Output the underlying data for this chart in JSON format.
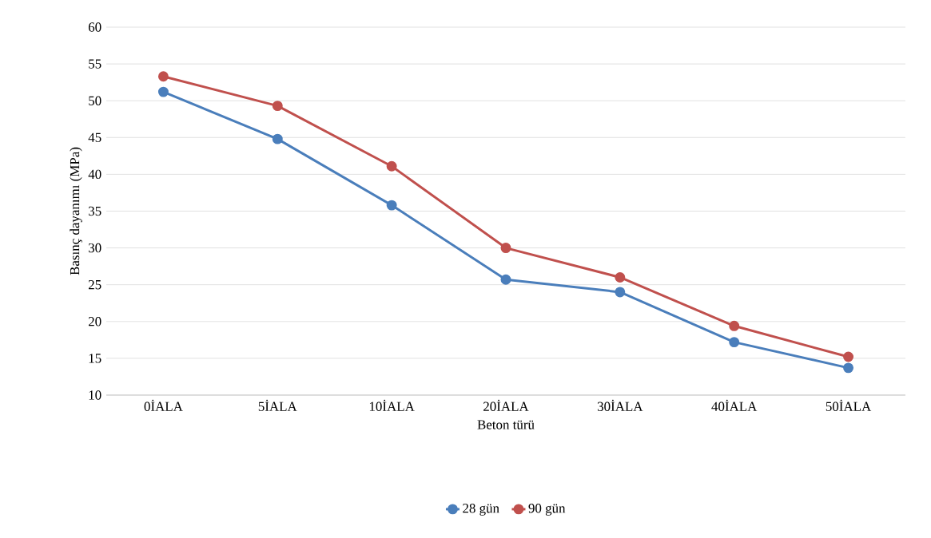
{
  "chart_data": {
    "type": "line",
    "xlabel": "Beton türü",
    "ylabel": "Basınç dayanımı (MPa)",
    "categories": [
      "0İALA",
      "5İALA",
      "10İALA",
      "20İALA",
      "30İALA",
      "40İALA",
      "50İALA"
    ],
    "series": [
      {
        "name": "28 gün",
        "color": "#4a7ebb",
        "values": [
          51.2,
          44.8,
          35.8,
          25.7,
          24.0,
          17.2,
          13.7
        ]
      },
      {
        "name": "90 gün",
        "color": "#c0504d",
        "values": [
          53.3,
          49.3,
          41.1,
          30.0,
          26.0,
          19.4,
          15.2
        ]
      }
    ],
    "ylim": [
      10,
      60
    ],
    "yticks": [
      10,
      15,
      20,
      25,
      30,
      35,
      40,
      45,
      50,
      55,
      60
    ],
    "grid": "y",
    "legend": "bottom",
    "marker": "circle",
    "line_style": "solid"
  }
}
